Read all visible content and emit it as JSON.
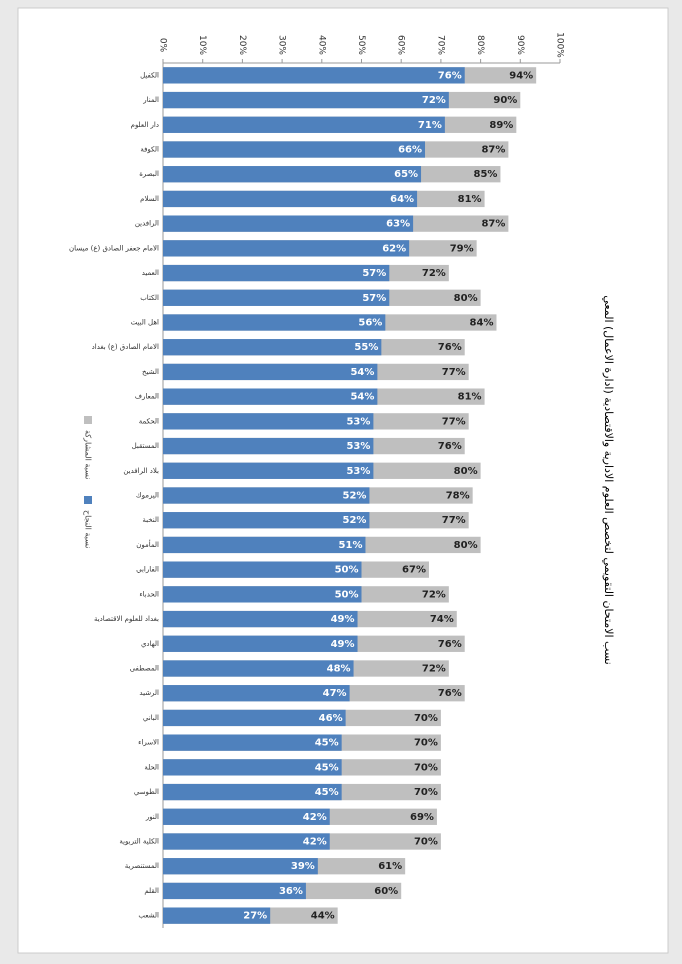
{
  "chart_data": {
    "type": "bar",
    "title": "نسب الامتحان التقويمي لتخصص العلوم الادارية والاقتصادية (ادارة الاعمال) المعي",
    "categories": [
      "الكفيل",
      "المنار",
      "دار العلوم",
      "الكوفة",
      "البصرة",
      "السلام",
      "الرافدين",
      "الامام جعفر الصادق (ع) ميسان",
      "العميد",
      "الكتاب",
      "اهل البيت",
      "الامام الصادق (ع) بغداد",
      "الشيخ",
      "المعارف",
      "الحكمة",
      "المستقبل",
      "بلاد الرافدين",
      "اليرموك",
      "النخبة",
      "المأمون",
      "الفارابي",
      "الحدباء",
      "بغداد للعلوم الاقتصادية",
      "الهادي",
      "المصطفى",
      "الرشيد",
      "الباني",
      "الاسراء",
      "الحلة",
      "الطوسي",
      "النور",
      "الكلية التربوية",
      "المستنصرية",
      "القلم",
      "الشعب"
    ],
    "series": [
      {
        "name": "نسبة النجاح",
        "color": "#4f81bd",
        "values": [
          76,
          72,
          71,
          66,
          65,
          64,
          63,
          62,
          57,
          57,
          56,
          55,
          54,
          54,
          53,
          53,
          53,
          52,
          52,
          51,
          50,
          50,
          49,
          49,
          48,
          47,
          46,
          45,
          45,
          45,
          42,
          42,
          39,
          36,
          27
        ],
        "value_labels": [
          "76%",
          "72%",
          "71%",
          "66%",
          "65%",
          "64%",
          "63%",
          "62%",
          "57%",
          "57%",
          "56%",
          "55%",
          "54%",
          "54%",
          "53%",
          "53%",
          "53%",
          "52%",
          "52%",
          "51%",
          "50%",
          "50%",
          "49%",
          "49%",
          "48%",
          "47%",
          "46%",
          "45%",
          "45%",
          "45%",
          "42%",
          "42%",
          "39%",
          "36%",
          "27%"
        ]
      },
      {
        "name": "نسبة المشاركة",
        "color": "#bfbfbf",
        "values": [
          94,
          90,
          89,
          87,
          85,
          81,
          87,
          79,
          72,
          80,
          84,
          76,
          77,
          81,
          77,
          76,
          80,
          78,
          77,
          80,
          67,
          72,
          74,
          76,
          72,
          76,
          70,
          70,
          70,
          70,
          69,
          70,
          61,
          60,
          44
        ],
        "value_labels": [
          "94%",
          "90%",
          "89%",
          "87%",
          "85%",
          "81%",
          "87%",
          "79%",
          "72%",
          "80%",
          "84%",
          "76%",
          "77%",
          "81%",
          "77%",
          "76%",
          "80%",
          "78%",
          "77%",
          "80%",
          "67%",
          "72%",
          "74%",
          "76%",
          "72%",
          "76%",
          "70%",
          "70%",
          "70%",
          "70%",
          "69%",
          "70%",
          "61%",
          "60%",
          "44%"
        ]
      }
    ],
    "xlim": [
      0,
      100
    ],
    "xticks": [
      {
        "value": 0,
        "label": "0%"
      },
      {
        "value": 10,
        "label": "10%"
      },
      {
        "value": 20,
        "label": "20%"
      },
      {
        "value": 30,
        "label": "30%"
      },
      {
        "value": 40,
        "label": "40%"
      },
      {
        "value": 50,
        "label": "50%"
      },
      {
        "value": 60,
        "label": "60%"
      },
      {
        "value": 70,
        "label": "70%"
      },
      {
        "value": 80,
        "label": "80%"
      },
      {
        "value": 90,
        "label": "90%"
      },
      {
        "value": 100,
        "label": "100%"
      }
    ],
    "grid": false
  }
}
